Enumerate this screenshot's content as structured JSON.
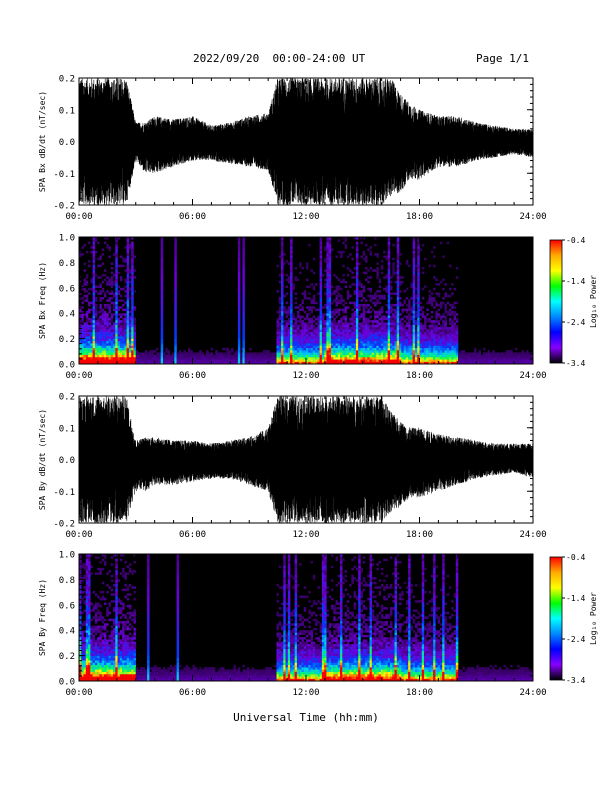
{
  "header": {
    "title": "2022/09/20  00:00-24:00 UT",
    "page": "Page 1/1"
  },
  "xaxis_label": "Universal Time (hh:mm)",
  "colorbar": {
    "label": "Log₁₀ Power",
    "ticks": [
      "-0.4",
      "-1.4",
      "-2.4",
      "-3.4"
    ],
    "colors": [
      "#ff0000",
      "#ffaa00",
      "#ffff00",
      "#00ff00",
      "#00ffff",
      "#0088ff",
      "#0000ff",
      "#8800ff",
      "#000000"
    ]
  },
  "chart_data": [
    {
      "type": "line",
      "ylabel": "SPA Bx dB/dt (nT/sec)",
      "ylim": [
        -0.2,
        0.2
      ],
      "yticks": [
        "0.2",
        "0.1",
        "0.0",
        "-0.1",
        "-0.2"
      ],
      "xticks": [
        "00:00",
        "06:00",
        "12:00",
        "18:00",
        "24:00"
      ],
      "x_hours": [
        0,
        0.5,
        1,
        1.5,
        2,
        2.5,
        3,
        3.5,
        4,
        5,
        6,
        7,
        8,
        9,
        10,
        10.5,
        11,
        11.5,
        12,
        12.5,
        13,
        13.5,
        14,
        14.5,
        15,
        15.5,
        16,
        16.5,
        17,
        17.5,
        18,
        19,
        20,
        21,
        22,
        23,
        24
      ],
      "envelope_high": [
        0.2,
        0.2,
        0.2,
        0.2,
        0.2,
        0.2,
        0.06,
        0.06,
        0.08,
        0.07,
        0.08,
        0.05,
        0.06,
        0.08,
        0.09,
        0.2,
        0.2,
        0.2,
        0.2,
        0.2,
        0.2,
        0.2,
        0.2,
        0.2,
        0.2,
        0.2,
        0.2,
        0.2,
        0.15,
        0.12,
        0.1,
        0.08,
        0.08,
        0.06,
        0.05,
        0.04,
        0.04
      ],
      "envelope_low": [
        -0.2,
        -0.2,
        -0.2,
        -0.2,
        -0.2,
        -0.2,
        -0.06,
        -0.1,
        -0.1,
        -0.08,
        -0.06,
        -0.06,
        -0.07,
        -0.08,
        -0.09,
        -0.2,
        -0.2,
        -0.2,
        -0.2,
        -0.2,
        -0.2,
        -0.2,
        -0.2,
        -0.2,
        -0.2,
        -0.2,
        -0.2,
        -0.17,
        -0.16,
        -0.12,
        -0.12,
        -0.08,
        -0.08,
        -0.06,
        -0.05,
        -0.04,
        -0.05
      ]
    },
    {
      "type": "heatmap",
      "ylabel": "SPA Bx Freq (Hz)",
      "ylim": [
        0.0,
        1.0
      ],
      "yticks": [
        "1.0",
        "0.8",
        "0.6",
        "0.4",
        "0.2",
        "0.0"
      ],
      "xticks": [
        "00:00",
        "06:00",
        "12:00",
        "18:00",
        "24:00"
      ],
      "zlim": [
        -3.4,
        -0.4
      ],
      "active_hours": [
        [
          0,
          3
        ],
        [
          10.5,
          18
        ],
        [
          18,
          20
        ]
      ]
    },
    {
      "type": "line",
      "ylabel": "SPA By dB/dt (nT/sec)",
      "ylim": [
        -0.2,
        0.2
      ],
      "yticks": [
        "0.2",
        "0.1",
        "0.0",
        "-0.1",
        "-0.2"
      ],
      "xticks": [
        "00:00",
        "06:00",
        "12:00",
        "18:00",
        "24:00"
      ],
      "x_hours": [
        0,
        0.5,
        1,
        1.5,
        2,
        2.5,
        3,
        3.5,
        4,
        5,
        6,
        7,
        8,
        9,
        10,
        10.5,
        11,
        11.5,
        12,
        12.5,
        13,
        13.5,
        14,
        14.5,
        15,
        15.5,
        16,
        16.5,
        17,
        17.5,
        18,
        19,
        20,
        21,
        22,
        23,
        24
      ],
      "envelope_high": [
        0.2,
        0.2,
        0.2,
        0.2,
        0.2,
        0.2,
        0.06,
        0.07,
        0.07,
        0.06,
        0.06,
        0.05,
        0.06,
        0.07,
        0.1,
        0.2,
        0.2,
        0.2,
        0.2,
        0.2,
        0.2,
        0.2,
        0.2,
        0.2,
        0.2,
        0.2,
        0.2,
        0.15,
        0.12,
        0.1,
        0.1,
        0.08,
        0.07,
        0.06,
        0.05,
        0.05,
        0.05
      ],
      "envelope_low": [
        -0.2,
        -0.2,
        -0.2,
        -0.2,
        -0.2,
        -0.2,
        -0.1,
        -0.1,
        -0.08,
        -0.08,
        -0.07,
        -0.06,
        -0.06,
        -0.08,
        -0.1,
        -0.2,
        -0.2,
        -0.2,
        -0.2,
        -0.2,
        -0.2,
        -0.2,
        -0.2,
        -0.2,
        -0.2,
        -0.2,
        -0.2,
        -0.17,
        -0.15,
        -0.12,
        -0.12,
        -0.1,
        -0.08,
        -0.06,
        -0.05,
        -0.04,
        -0.06
      ]
    },
    {
      "type": "heatmap",
      "ylabel": "SPA By Freq (Hz)",
      "ylim": [
        0.0,
        1.0
      ],
      "yticks": [
        "1.0",
        "0.8",
        "0.6",
        "0.4",
        "0.2",
        "0.0"
      ],
      "xticks": [
        "00:00",
        "06:00",
        "12:00",
        "18:00",
        "24:00"
      ],
      "zlim": [
        -3.4,
        -0.4
      ],
      "active_hours": [
        [
          0,
          3
        ],
        [
          10.5,
          18
        ],
        [
          18,
          20
        ]
      ]
    }
  ]
}
